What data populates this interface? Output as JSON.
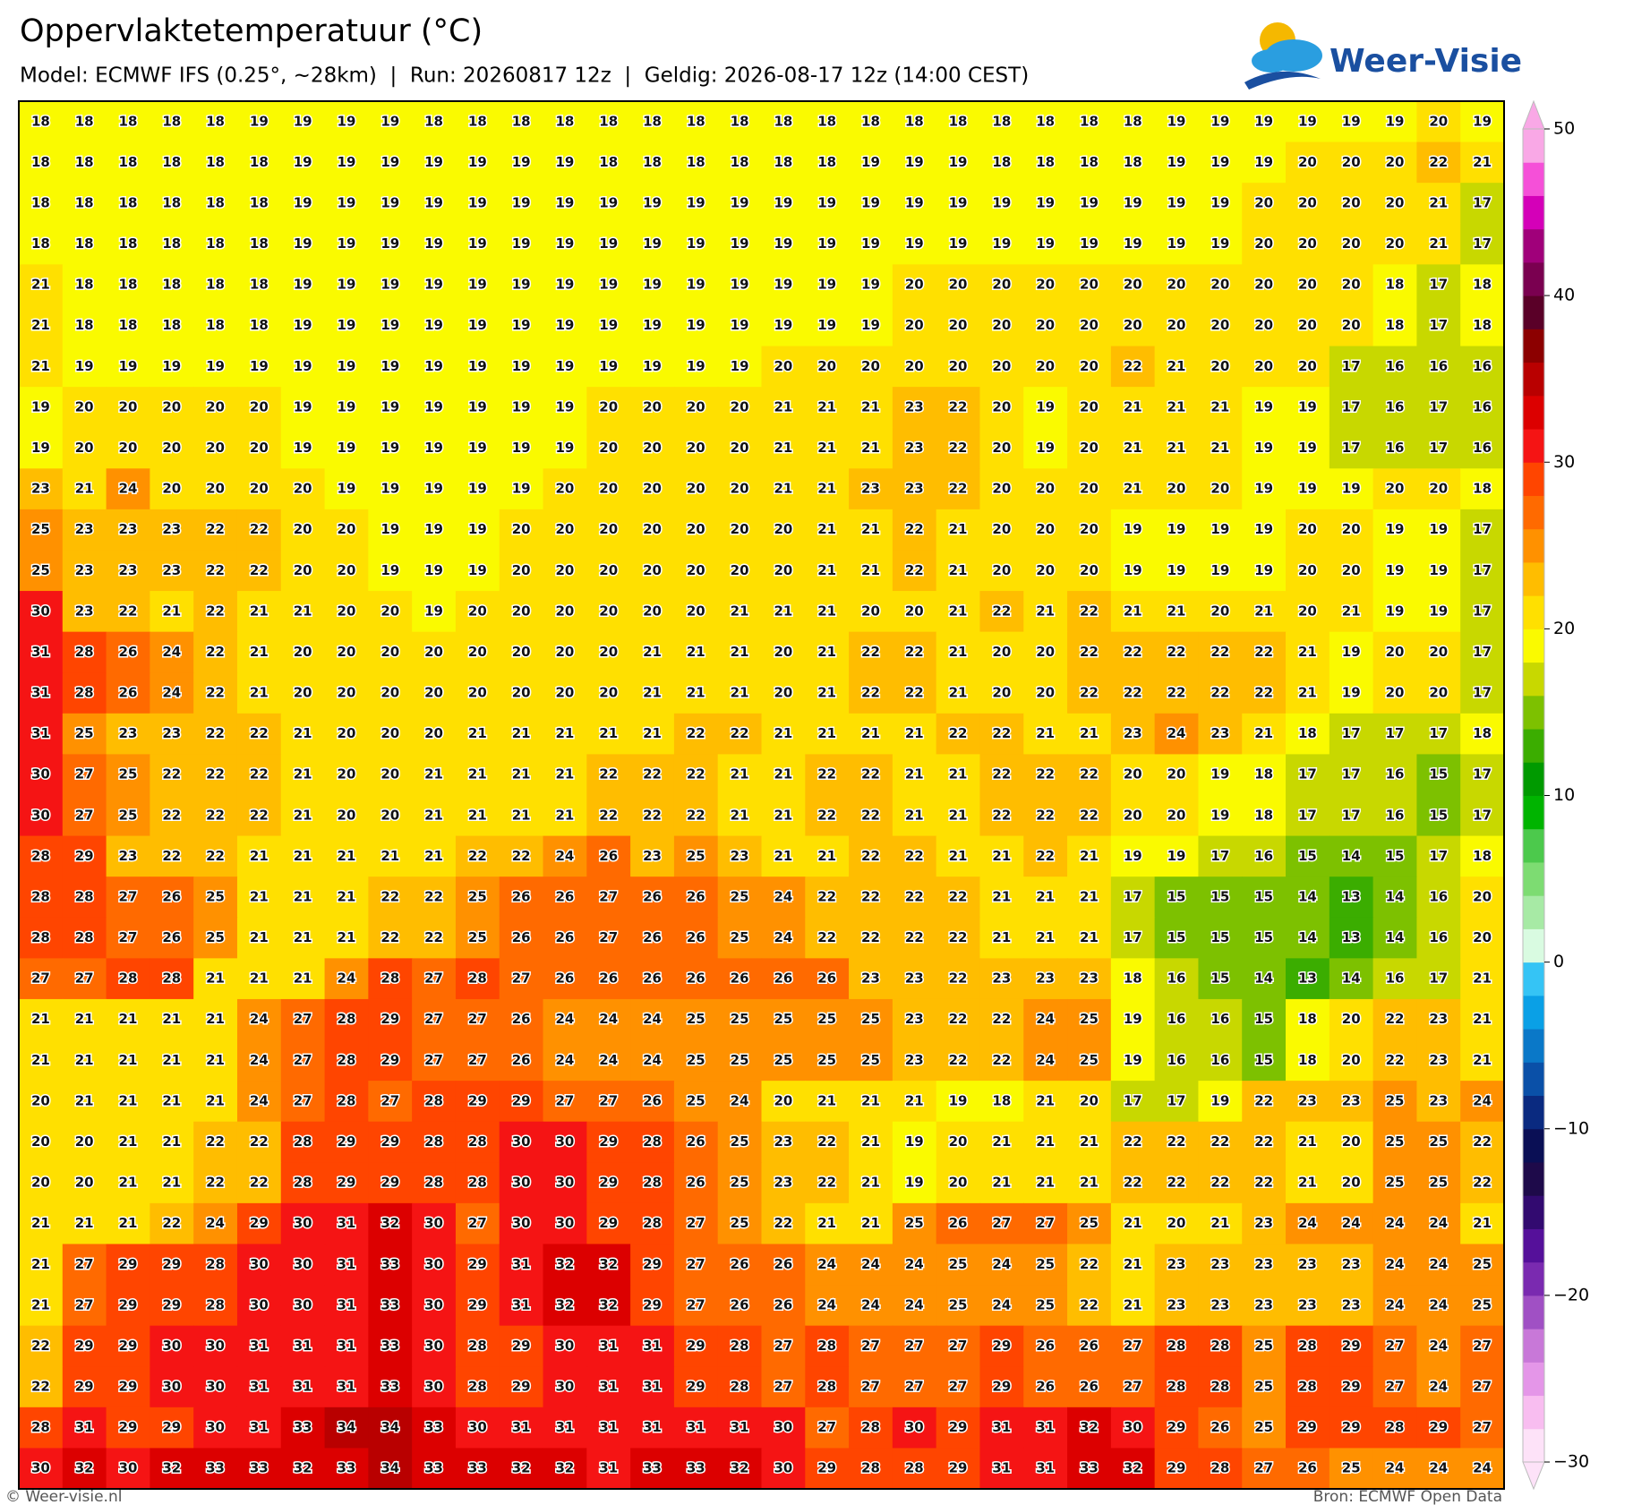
{
  "header": {
    "title": "Oppervlaktetemperatuur (°C)",
    "subtitle": "Model: ECMWF IFS (0.25°, ~28km)  |  Run: 20260817 12z  |  Geldig: 2026-08-17 12z (14:00 CEST)",
    "logo": "Weer-Visie"
  },
  "map": {
    "type": "grid",
    "values": [
      [
        18,
        18,
        18,
        18,
        18,
        19,
        19,
        19,
        19,
        18,
        18,
        18,
        18,
        18,
        18,
        18,
        18,
        18,
        18,
        18,
        18,
        18,
        18,
        18,
        18,
        18,
        19,
        19,
        19,
        19,
        19,
        19,
        20,
        19
      ],
      [
        18,
        18,
        18,
        18,
        18,
        18,
        19,
        19,
        19,
        19,
        19,
        19,
        19,
        18,
        18,
        18,
        18,
        18,
        18,
        19,
        19,
        19,
        18,
        18,
        18,
        18,
        19,
        19,
        19,
        20,
        20,
        20,
        22,
        21
      ],
      [
        18,
        18,
        18,
        18,
        18,
        18,
        19,
        19,
        19,
        19,
        19,
        19,
        19,
        19,
        19,
        19,
        19,
        19,
        19,
        19,
        19,
        19,
        19,
        19,
        19,
        19,
        19,
        19,
        20,
        20,
        20,
        20,
        21,
        17
      ],
      [
        18,
        18,
        18,
        18,
        18,
        18,
        19,
        19,
        19,
        19,
        19,
        19,
        19,
        19,
        19,
        19,
        19,
        19,
        19,
        19,
        19,
        19,
        19,
        19,
        19,
        19,
        19,
        19,
        20,
        20,
        20,
        20,
        21,
        17
      ],
      [
        21,
        18,
        18,
        18,
        18,
        18,
        19,
        19,
        19,
        19,
        19,
        19,
        19,
        19,
        19,
        19,
        19,
        19,
        19,
        19,
        20,
        20,
        20,
        20,
        20,
        20,
        20,
        20,
        20,
        20,
        20,
        18,
        17,
        18
      ],
      [
        21,
        18,
        18,
        18,
        18,
        18,
        19,
        19,
        19,
        19,
        19,
        19,
        19,
        19,
        19,
        19,
        19,
        19,
        19,
        19,
        20,
        20,
        20,
        20,
        20,
        20,
        20,
        20,
        20,
        20,
        20,
        18,
        17,
        18
      ],
      [
        21,
        19,
        19,
        19,
        19,
        19,
        19,
        19,
        19,
        19,
        19,
        19,
        19,
        19,
        19,
        19,
        19,
        20,
        20,
        20,
        20,
        20,
        20,
        20,
        20,
        22,
        21,
        20,
        20,
        20,
        17,
        16,
        16,
        16
      ],
      [
        19,
        20,
        20,
        20,
        20,
        20,
        19,
        19,
        19,
        19,
        19,
        19,
        19,
        20,
        20,
        20,
        20,
        21,
        21,
        21,
        23,
        22,
        20,
        19,
        20,
        21,
        21,
        21,
        19,
        19,
        17,
        16,
        17,
        16
      ],
      [
        19,
        20,
        20,
        20,
        20,
        20,
        19,
        19,
        19,
        19,
        19,
        19,
        19,
        20,
        20,
        20,
        20,
        21,
        21,
        21,
        23,
        22,
        20,
        19,
        20,
        21,
        21,
        21,
        19,
        19,
        17,
        16,
        17,
        16
      ],
      [
        23,
        21,
        24,
        20,
        20,
        20,
        20,
        19,
        19,
        19,
        19,
        19,
        20,
        20,
        20,
        20,
        20,
        21,
        21,
        23,
        23,
        22,
        20,
        20,
        20,
        21,
        20,
        20,
        19,
        19,
        19,
        20,
        20,
        18
      ],
      [
        25,
        23,
        23,
        23,
        22,
        22,
        20,
        20,
        19,
        19,
        19,
        20,
        20,
        20,
        20,
        20,
        20,
        20,
        21,
        21,
        22,
        21,
        20,
        20,
        20,
        19,
        19,
        19,
        19,
        20,
        20,
        19,
        19,
        17
      ],
      [
        25,
        23,
        23,
        23,
        22,
        22,
        20,
        20,
        19,
        19,
        19,
        20,
        20,
        20,
        20,
        20,
        20,
        20,
        21,
        21,
        22,
        21,
        20,
        20,
        20,
        19,
        19,
        19,
        19,
        20,
        20,
        19,
        19,
        17
      ],
      [
        30,
        23,
        22,
        21,
        22,
        21,
        21,
        20,
        20,
        19,
        20,
        20,
        20,
        20,
        20,
        20,
        21,
        21,
        21,
        20,
        20,
        21,
        22,
        21,
        22,
        21,
        21,
        20,
        21,
        20,
        21,
        19,
        19,
        17
      ],
      [
        31,
        28,
        26,
        24,
        22,
        21,
        20,
        20,
        20,
        20,
        20,
        20,
        20,
        20,
        21,
        21,
        21,
        20,
        21,
        22,
        22,
        21,
        20,
        20,
        22,
        22,
        22,
        22,
        22,
        21,
        19,
        20,
        20,
        17
      ],
      [
        31,
        28,
        26,
        24,
        22,
        21,
        20,
        20,
        20,
        20,
        20,
        20,
        20,
        20,
        21,
        21,
        21,
        20,
        21,
        22,
        22,
        21,
        20,
        20,
        22,
        22,
        22,
        22,
        22,
        21,
        19,
        20,
        20,
        17
      ],
      [
        31,
        25,
        23,
        23,
        22,
        22,
        21,
        20,
        20,
        20,
        21,
        21,
        21,
        21,
        21,
        22,
        22,
        21,
        21,
        21,
        21,
        22,
        22,
        21,
        21,
        23,
        24,
        23,
        21,
        18,
        17,
        17,
        17,
        18
      ],
      [
        30,
        27,
        25,
        22,
        22,
        22,
        21,
        20,
        20,
        21,
        21,
        21,
        21,
        22,
        22,
        22,
        21,
        21,
        22,
        22,
        21,
        21,
        22,
        22,
        22,
        20,
        20,
        19,
        18,
        17,
        17,
        16,
        15,
        17
      ],
      [
        30,
        27,
        25,
        22,
        22,
        22,
        21,
        20,
        20,
        21,
        21,
        21,
        21,
        22,
        22,
        22,
        21,
        21,
        22,
        22,
        21,
        21,
        22,
        22,
        22,
        20,
        20,
        19,
        18,
        17,
        17,
        16,
        15,
        17
      ],
      [
        28,
        29,
        23,
        22,
        22,
        21,
        21,
        21,
        21,
        21,
        22,
        22,
        24,
        26,
        23,
        25,
        23,
        21,
        21,
        22,
        22,
        21,
        21,
        22,
        21,
        19,
        19,
        17,
        16,
        15,
        14,
        15,
        17,
        18
      ],
      [
        28,
        28,
        27,
        26,
        25,
        21,
        21,
        21,
        22,
        22,
        25,
        26,
        26,
        27,
        26,
        26,
        25,
        24,
        22,
        22,
        22,
        22,
        21,
        21,
        21,
        17,
        15,
        15,
        15,
        14,
        13,
        14,
        16,
        20
      ],
      [
        28,
        28,
        27,
        26,
        25,
        21,
        21,
        21,
        22,
        22,
        25,
        26,
        26,
        27,
        26,
        26,
        25,
        24,
        22,
        22,
        22,
        22,
        21,
        21,
        21,
        17,
        15,
        15,
        15,
        14,
        13,
        14,
        16,
        20
      ],
      [
        27,
        27,
        28,
        28,
        21,
        21,
        21,
        24,
        28,
        27,
        28,
        27,
        26,
        26,
        26,
        26,
        26,
        26,
        26,
        23,
        23,
        22,
        23,
        23,
        23,
        18,
        16,
        15,
        14,
        13,
        14,
        16,
        17,
        21
      ],
      [
        21,
        21,
        21,
        21,
        21,
        24,
        27,
        28,
        29,
        27,
        27,
        26,
        24,
        24,
        24,
        25,
        25,
        25,
        25,
        25,
        23,
        22,
        22,
        24,
        25,
        19,
        16,
        16,
        15,
        18,
        20,
        22,
        23,
        21
      ],
      [
        21,
        21,
        21,
        21,
        21,
        24,
        27,
        28,
        29,
        27,
        27,
        26,
        24,
        24,
        24,
        25,
        25,
        25,
        25,
        25,
        23,
        22,
        22,
        24,
        25,
        19,
        16,
        16,
        15,
        18,
        20,
        22,
        23,
        21
      ],
      [
        20,
        21,
        21,
        21,
        21,
        24,
        27,
        28,
        27,
        28,
        29,
        29,
        27,
        27,
        26,
        25,
        24,
        20,
        21,
        21,
        21,
        19,
        18,
        21,
        20,
        17,
        17,
        19,
        22,
        23,
        23,
        25,
        23,
        24
      ],
      [
        20,
        20,
        21,
        21,
        22,
        22,
        28,
        29,
        29,
        28,
        28,
        30,
        30,
        29,
        28,
        26,
        25,
        23,
        22,
        21,
        19,
        20,
        21,
        21,
        21,
        22,
        22,
        22,
        22,
        21,
        20,
        25,
        25,
        22
      ],
      [
        20,
        20,
        21,
        21,
        22,
        22,
        28,
        29,
        29,
        28,
        28,
        30,
        30,
        29,
        28,
        26,
        25,
        23,
        22,
        21,
        19,
        20,
        21,
        21,
        21,
        22,
        22,
        22,
        22,
        21,
        20,
        25,
        25,
        22
      ],
      [
        21,
        21,
        21,
        22,
        24,
        29,
        30,
        31,
        32,
        30,
        27,
        30,
        30,
        29,
        28,
        27,
        25,
        22,
        21,
        21,
        25,
        26,
        27,
        27,
        25,
        21,
        20,
        21,
        23,
        24,
        24,
        24,
        24,
        21
      ],
      [
        21,
        27,
        29,
        29,
        28,
        30,
        30,
        31,
        33,
        30,
        29,
        31,
        32,
        32,
        29,
        27,
        26,
        26,
        24,
        24,
        24,
        25,
        24,
        25,
        22,
        21,
        23,
        23,
        23,
        23,
        23,
        24,
        24,
        25
      ],
      [
        21,
        27,
        29,
        29,
        28,
        30,
        30,
        31,
        33,
        30,
        29,
        31,
        32,
        32,
        29,
        27,
        26,
        26,
        24,
        24,
        24,
        25,
        24,
        25,
        22,
        21,
        23,
        23,
        23,
        23,
        23,
        24,
        24,
        25
      ],
      [
        22,
        29,
        29,
        30,
        30,
        31,
        31,
        31,
        33,
        30,
        28,
        29,
        30,
        31,
        31,
        29,
        28,
        27,
        28,
        27,
        27,
        27,
        29,
        26,
        26,
        27,
        28,
        28,
        25,
        28,
        29,
        27,
        24,
        27
      ],
      [
        22,
        29,
        29,
        30,
        30,
        31,
        31,
        31,
        33,
        30,
        28,
        29,
        30,
        31,
        31,
        29,
        28,
        27,
        28,
        27,
        27,
        27,
        29,
        26,
        26,
        27,
        28,
        28,
        25,
        28,
        29,
        27,
        24,
        27
      ],
      [
        28,
        31,
        29,
        29,
        30,
        31,
        33,
        34,
        34,
        33,
        30,
        31,
        31,
        31,
        31,
        31,
        31,
        30,
        27,
        28,
        30,
        29,
        31,
        31,
        32,
        30,
        29,
        26,
        25,
        29,
        29,
        28,
        29,
        27
      ],
      [
        30,
        32,
        30,
        32,
        33,
        33,
        32,
        33,
        34,
        33,
        33,
        32,
        32,
        31,
        33,
        33,
        32,
        30,
        29,
        28,
        28,
        29,
        31,
        31,
        33,
        32,
        29,
        28,
        27,
        26,
        25,
        24,
        24,
        24
      ]
    ]
  },
  "colorbar": {
    "clim": [
      -30,
      50
    ],
    "colors": [
      "#fde2f8",
      "#f8bdf0",
      "#e496e8",
      "#c878d8",
      "#a050c4",
      "#7a2ab0",
      "#55109a",
      "#320a70",
      "#1e0a4a",
      "#0a0f55",
      "#0a2a80",
      "#0a50a8",
      "#0a78c8",
      "#0aa0e6",
      "#35c4f5",
      "#d9fbe1",
      "#a7eaa5",
      "#7ddc72",
      "#4cc94c",
      "#00b400",
      "#009a00",
      "#3bad00",
      "#7dc100",
      "#c8d800",
      "#fafa00",
      "#ffe000",
      "#ffbd00",
      "#ff9100",
      "#ff6a00",
      "#ff4500",
      "#f51414",
      "#dc0000",
      "#b90000",
      "#8c0000",
      "#5a0028",
      "#7a0050",
      "#a0007a",
      "#d400b8",
      "#f550d8",
      "#f9a8e6"
    ],
    "ticks": [
      50,
      40,
      30,
      20,
      10,
      0,
      {
        "value": -10,
        "label": "−10"
      },
      {
        "value": -20,
        "label": "−20"
      },
      {
        "value": -30,
        "label": "−30"
      }
    ]
  },
  "footer": {
    "left": "© Weer-visie.nl",
    "right": "Bron: ECMWF Open Data"
  }
}
